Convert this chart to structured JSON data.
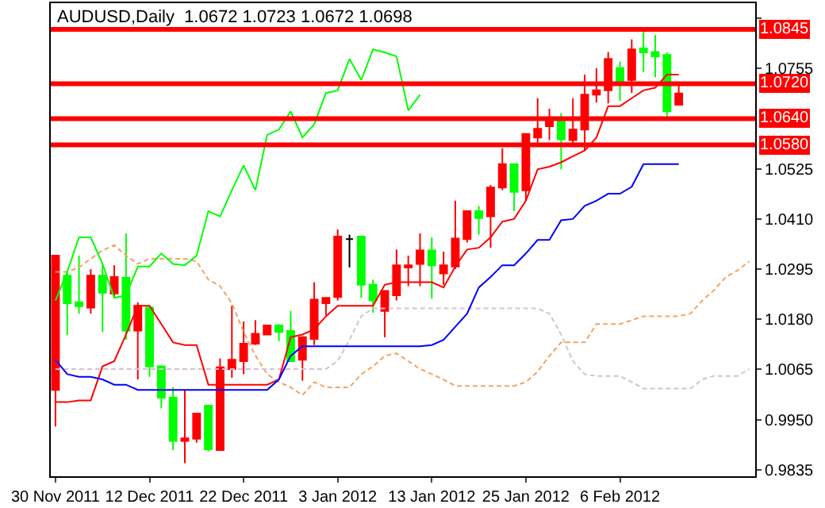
{
  "chart_data": {
    "type": "candlestick",
    "title": "AUDUSD,Daily  1.0672 1.0723 1.0672 1.0698",
    "categories": [
      "30 Nov 2011",
      null,
      null,
      null,
      null,
      null,
      null,
      null,
      "12 Dec 2011",
      null,
      null,
      null,
      null,
      null,
      null,
      null,
      "22 Dec 2011",
      null,
      null,
      null,
      null,
      null,
      null,
      null,
      "3 Jan 2012",
      null,
      null,
      null,
      null,
      null,
      null,
      null,
      "13 Jan 2012",
      null,
      null,
      null,
      null,
      null,
      null,
      null,
      "25 Jan 2012",
      null,
      null,
      null,
      null,
      null,
      null,
      null,
      "6 Feb 2012",
      null,
      null,
      null,
      null,
      null,
      null,
      null,
      null,
      null,
      null,
      null
    ],
    "ohlc": [
      [
        1.0018,
        1.0326,
        0.9934,
        1.0326
      ],
      [
        1.028,
        1.0289,
        1.0144,
        1.0217
      ],
      [
        1.0219,
        1.0326,
        1.0193,
        1.021
      ],
      [
        1.0207,
        1.0295,
        1.0193,
        1.028
      ],
      [
        1.028,
        1.0304,
        1.0151,
        1.0241
      ],
      [
        1.0239,
        1.0304,
        1.0229,
        1.0277
      ],
      [
        1.0275,
        1.0377,
        1.0133,
        1.0154
      ],
      [
        1.0154,
        1.0219,
        1.0042,
        1.0211
      ],
      [
        1.0207,
        1.0207,
        1.0048,
        1.0072
      ],
      [
        1.0072,
        1.0072,
        0.9976,
        1.0
      ],
      [
        1.0,
        1.0024,
        0.988,
        0.9901
      ],
      [
        0.9901,
        1.0018,
        0.985,
        0.9907
      ],
      [
        0.9906,
        0.9964,
        0.9897,
        0.9964
      ],
      [
        0.9982,
        0.9982,
        0.9877,
        0.9882
      ],
      [
        0.988,
        1.009,
        0.988,
        1.007
      ],
      [
        1.0066,
        1.0211,
        1.0046,
        1.0087
      ],
      [
        1.0084,
        1.0175,
        1.0054,
        1.0124
      ],
      [
        1.0124,
        1.0178,
        1.0121,
        1.0147
      ],
      [
        1.0145,
        1.0166,
        1.0145,
        1.0166
      ],
      [
        1.0166,
        1.0169,
        1.013,
        1.0151
      ],
      [
        1.0153,
        1.0199,
        1.0084,
        1.0084
      ],
      [
        1.0087,
        1.0139,
        1.0039,
        1.0139
      ],
      [
        1.0135,
        1.0265,
        1.0121,
        1.0225
      ],
      [
        1.0217,
        1.0229,
        1.0189,
        1.0229
      ],
      [
        1.0231,
        1.0386,
        1.0223,
        1.037
      ],
      [
        1.0364,
        1.0374,
        1.0299,
        1.0364
      ],
      [
        1.037,
        1.037,
        1.0229,
        1.0259
      ],
      [
        1.0259,
        1.0271,
        1.0195,
        1.0223
      ],
      [
        1.0199,
        1.0245,
        1.0139,
        1.0245
      ],
      [
        1.0235,
        1.034,
        1.0223,
        1.0304
      ],
      [
        1.0299,
        1.0326,
        1.0256,
        1.0304
      ],
      [
        1.0307,
        1.0377,
        1.0256,
        1.0338
      ],
      [
        1.0338,
        1.0368,
        1.0227,
        1.0304
      ],
      [
        1.0285,
        1.0335,
        1.0259,
        1.0304
      ],
      [
        1.0301,
        1.0452,
        1.0295,
        1.0365
      ],
      [
        1.0364,
        1.0428,
        1.0356,
        1.0428
      ],
      [
        1.0428,
        1.044,
        1.0374,
        1.0412
      ],
      [
        1.0416,
        1.0488,
        1.0344,
        1.0482
      ],
      [
        1.0482,
        1.0572,
        1.0476,
        1.0536
      ],
      [
        1.0536,
        1.0536,
        1.0428,
        1.0472
      ],
      [
        1.0476,
        1.0605,
        1.0452,
        1.0605
      ],
      [
        1.0597,
        1.0687,
        1.0585,
        1.0617
      ],
      [
        1.0623,
        1.0663,
        1.0591,
        1.0641
      ],
      [
        1.0639,
        1.0653,
        1.0524,
        1.0593
      ],
      [
        1.0591,
        1.0687,
        1.0576,
        1.0615
      ],
      [
        1.0615,
        1.0741,
        1.0567,
        1.0695
      ],
      [
        1.0695,
        1.0756,
        1.0677,
        1.0705
      ],
      [
        1.0705,
        1.0793,
        1.0675,
        1.0777
      ],
      [
        1.0756,
        1.0771,
        1.0681,
        1.0726
      ],
      [
        1.0729,
        1.0822,
        1.0699,
        1.0799
      ],
      [
        1.0801,
        1.0846,
        1.0747,
        1.0792
      ],
      [
        1.0793,
        1.0832,
        1.0735,
        1.0783
      ],
      [
        1.0786,
        1.0792,
        1.0639,
        1.0657
      ],
      [
        1.0672,
        1.0723,
        1.0672,
        1.0698
      ],
      null,
      null,
      null,
      null,
      null,
      null
    ],
    "colors": [
      "#ff0000",
      "#00ff00",
      "#00ff00",
      "#ff0000",
      "#00ff00",
      "#ff0000",
      "#00ff00",
      "#ff0000",
      "#00ff00",
      "#00ff00",
      "#00ff00",
      "#ff0000",
      "#ff0000",
      "#00ff00",
      "#ff0000",
      "#ff0000",
      "#ff0000",
      "#ff0000",
      "#ff0000",
      "#00ff00",
      "#00ff00",
      "#ff0000",
      "#ff0000",
      "#ff0000",
      "#ff0000",
      "#000000",
      "#00ff00",
      "#00ff00",
      "#ff0000",
      "#ff0000",
      "#ff0000",
      "#ff0000",
      "#00ff00",
      "#ff0000",
      "#ff0000",
      "#ff0000",
      "#00ff00",
      "#ff0000",
      "#ff0000",
      "#00ff00",
      "#ff0000",
      "#ff0000",
      "#ff0000",
      "#00ff00",
      "#ff0000",
      "#ff0000",
      "#ff0000",
      "#ff0000",
      "#00ff00",
      "#ff0000",
      "#00ff00",
      "#00ff00",
      "#00ff00",
      "#ff0000",
      null,
      null,
      null,
      null,
      null,
      null
    ],
    "ylim": [
      0.982,
      1.0905
    ],
    "yticks": [
      {
        "value": 0.9835,
        "label": "0.9835"
      },
      {
        "value": 0.995,
        "label": "0.9950"
      },
      {
        "value": 1.0065,
        "label": "1.0065"
      },
      {
        "value": 1.018,
        "label": "1.0180"
      },
      {
        "value": 1.0295,
        "label": "1.0295"
      },
      {
        "value": 1.041,
        "label": "1.0410"
      },
      {
        "value": 1.0525,
        "label": "1.0525"
      },
      {
        "value": 1.0755,
        "label": "1.0755"
      },
      {
        "value": 1.087,
        "label": null
      }
    ],
    "ref_lines": [
      {
        "axis": "y",
        "value": 1.0845,
        "label": "1.0845",
        "color": "#ff0000"
      },
      {
        "axis": "y",
        "value": 1.072,
        "label": "1.0720",
        "color": "#ff0000"
      },
      {
        "axis": "y",
        "value": 1.064,
        "label": "1.0640",
        "color": "#ff0000"
      },
      {
        "axis": "y",
        "value": 1.058,
        "label": "1.0580",
        "color": "#ff0000"
      }
    ],
    "series": [
      {
        "type": "line",
        "color": "#f4a460",
        "line_style": "dashed",
        "values": [
          1.0289,
          1.0289,
          1.0299,
          1.0319,
          1.0338,
          1.035,
          1.0326,
          1.0307,
          1.0319,
          1.0319,
          1.0319,
          1.0319,
          1.0313,
          1.0271,
          1.0256,
          1.0217,
          1.0151,
          1.0097,
          1.0054,
          1.0036,
          1.0024,
          1.0006,
          1.0036,
          1.0024,
          1.0024,
          1.0024,
          1.0054,
          1.0072,
          1.0096,
          1.0102,
          1.0084,
          1.0066,
          1.0054,
          1.0042,
          1.0027,
          1.0027,
          1.0027,
          1.0027,
          1.0027,
          1.0027,
          1.0036,
          1.006,
          1.0096,
          1.0127,
          1.0127,
          1.0127,
          1.0169,
          1.0169,
          1.0169,
          1.0178,
          1.0187,
          1.0187,
          1.0187,
          1.0187,
          1.0193,
          1.0223,
          1.0247,
          1.0277,
          1.0292,
          1.0313
        ]
      },
      {
        "type": "line",
        "color": "#d8bfd8",
        "line_style": "dashed",
        "values": [
          1.0066,
          1.0066,
          1.0066,
          1.0066,
          1.0066,
          1.0066,
          1.0066,
          1.0066,
          1.0066,
          1.0066,
          1.0066,
          1.0066,
          1.0066,
          1.0066,
          1.0066,
          1.0066,
          1.0066,
          1.0066,
          1.0066,
          1.0066,
          1.0066,
          1.0066,
          1.0066,
          1.0066,
          1.0084,
          1.0133,
          1.0187,
          1.0205,
          1.0205,
          1.0205,
          1.0205,
          1.0205,
          1.0205,
          1.0205,
          1.0205,
          1.0205,
          1.0205,
          1.0205,
          1.0205,
          1.0205,
          1.0205,
          1.0205,
          1.0193,
          1.0145,
          1.0084,
          1.0054,
          1.005,
          1.005,
          1.005,
          1.0036,
          1.0021,
          1.0021,
          1.0021,
          1.0021,
          1.0021,
          1.0042,
          1.005,
          1.005,
          1.005,
          1.0066
        ]
      },
      {
        "type": "line",
        "color": "#ff0000",
        "values": [
          0.999,
          0.999,
          0.9994,
          0.9994,
          1.0072,
          1.0084,
          1.0145,
          1.0211,
          1.0211,
          1.0169,
          1.0127,
          1.0121,
          1.0121,
          1.003,
          1.003,
          1.003,
          1.003,
          1.003,
          1.003,
          1.0042,
          1.0139,
          1.0145,
          1.0157,
          1.0187,
          1.0211,
          1.0211,
          1.0211,
          1.0211,
          1.0259,
          1.0265,
          1.0265,
          1.0265,
          1.0265,
          1.0253,
          1.0301,
          1.034,
          1.0344,
          1.0368,
          1.0404,
          1.041,
          1.0452,
          1.0524,
          1.053,
          1.054,
          1.0554,
          1.0567,
          1.0597,
          1.0669,
          1.0669,
          1.0687,
          1.0705,
          1.0711,
          1.0741,
          1.0741,
          null,
          null,
          null,
          null,
          null,
          null
        ]
      },
      {
        "type": "line",
        "color": "#0000ff",
        "values": [
          1.0087,
          1.0054,
          1.0048,
          1.0048,
          1.0042,
          1.003,
          1.003,
          1.0018,
          1.0018,
          1.0018,
          1.0018,
          1.0018,
          1.0018,
          1.0018,
          1.0018,
          1.0018,
          1.0018,
          1.0018,
          1.0018,
          1.0042,
          1.0096,
          1.0118,
          1.0118,
          1.0118,
          1.0118,
          1.0118,
          1.0118,
          1.0118,
          1.0118,
          1.0118,
          1.0118,
          1.0118,
          1.0121,
          1.0133,
          1.0163,
          1.0193,
          1.0253,
          1.0277,
          1.0304,
          1.0304,
          1.0331,
          1.0362,
          1.0362,
          1.0407,
          1.041,
          1.044,
          1.0452,
          1.0468,
          1.0468,
          1.0484,
          1.0536,
          1.0536,
          1.0536,
          1.0536,
          null,
          null,
          null,
          null,
          null,
          null
        ]
      },
      {
        "type": "line",
        "color": "#00ff00",
        "values": [
          1.0223,
          1.0289,
          1.0368,
          1.0368,
          1.0307,
          1.0229,
          1.0235,
          1.0301,
          1.0301,
          1.0331,
          1.0307,
          1.0304,
          1.0326,
          1.0428,
          1.0416,
          1.0476,
          1.0533,
          1.0476,
          1.0603,
          1.0615,
          1.0657,
          1.0597,
          1.0627,
          1.0699,
          1.0705,
          1.0777,
          1.0729,
          1.0799,
          1.0792,
          1.0783,
          1.0659,
          1.0695,
          null,
          null,
          null,
          null,
          null,
          null,
          null,
          null,
          null,
          null,
          null,
          null,
          null,
          null,
          null,
          null,
          null,
          null,
          null,
          null,
          null,
          null,
          null,
          null,
          null,
          null,
          null,
          null
        ]
      }
    ]
  }
}
